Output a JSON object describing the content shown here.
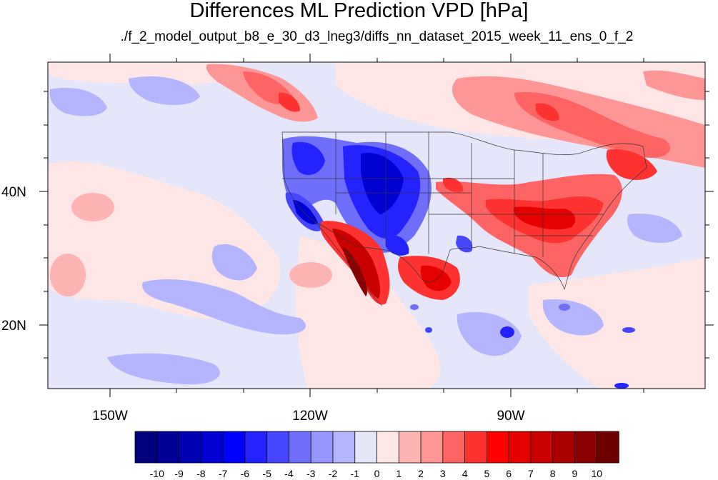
{
  "title": "Differences ML Prediction VPD [hPa]",
  "subtitle": "./f_2_model_output_b8_e_30_d3_lneg3/diffs_nn_dataset_2015_week_11_ens_0_f_2",
  "map": {
    "lat_labels": [
      "40N",
      "20N"
    ],
    "lon_labels": [
      "150W",
      "120W",
      "90W"
    ],
    "background_color": "#e6e6fa"
  },
  "colorbar": {
    "labels": [
      "-10",
      "-9",
      "-8",
      "-7",
      "-6",
      "-5",
      "-4",
      "-3",
      "-2",
      "-1",
      "0",
      "1",
      "2",
      "3",
      "4",
      "5",
      "6",
      "7",
      "8",
      "9",
      "10"
    ],
    "colors": [
      "#00007d",
      "#000096",
      "#0000b4",
      "#0000d2",
      "#0000ff",
      "#2323ff",
      "#4646ff",
      "#6e6efa",
      "#9696ff",
      "#b4b4ff",
      "#e6e6fa",
      "#ffe6e6",
      "#ffb4b4",
      "#ff9696",
      "#ff6464",
      "#ff3232",
      "#ff0000",
      "#e60000",
      "#c80000",
      "#aa0000",
      "#8c0000",
      "#6e0000"
    ]
  }
}
